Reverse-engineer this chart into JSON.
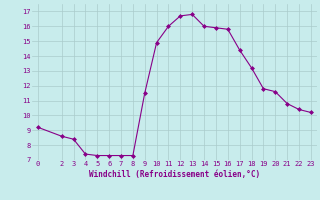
{
  "x": [
    0,
    2,
    3,
    4,
    5,
    6,
    7,
    8,
    9,
    10,
    11,
    12,
    13,
    14,
    15,
    16,
    17,
    18,
    19,
    20,
    21,
    22,
    23
  ],
  "y": [
    9.2,
    8.6,
    8.4,
    7.4,
    7.3,
    7.3,
    7.3,
    7.3,
    11.5,
    14.9,
    16.0,
    16.7,
    16.8,
    16.0,
    15.9,
    15.8,
    14.4,
    13.2,
    11.8,
    11.6,
    10.8,
    10.4,
    10.2
  ],
  "line_color": "#880088",
  "marker": "D",
  "marker_size": 2.0,
  "bg_color": "#c8ecec",
  "grid_color": "#aacccc",
  "xlabel": "Windchill (Refroidissement éolien,°C)",
  "xlabel_color": "#880088",
  "tick_color": "#880088",
  "ylim": [
    7,
    17.5
  ],
  "xlim": [
    -0.5,
    23.5
  ],
  "yticks": [
    7,
    8,
    9,
    10,
    11,
    12,
    13,
    14,
    15,
    16,
    17
  ],
  "xticks": [
    0,
    2,
    3,
    4,
    5,
    6,
    7,
    8,
    9,
    10,
    11,
    12,
    13,
    14,
    15,
    16,
    17,
    18,
    19,
    20,
    21,
    22,
    23
  ],
  "tick_fontsize": 5.0,
  "xlabel_fontsize": 5.5,
  "linewidth": 0.8
}
